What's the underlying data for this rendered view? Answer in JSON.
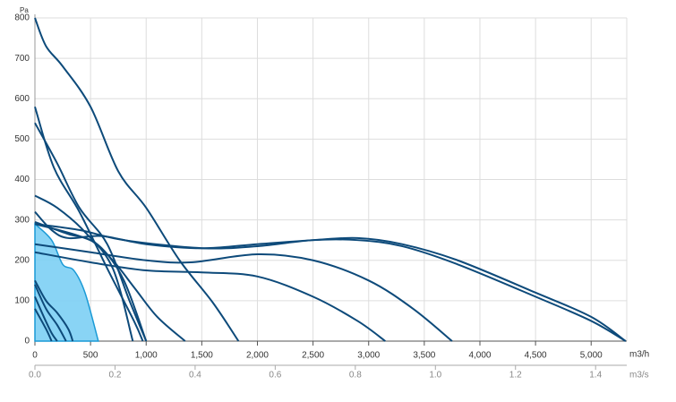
{
  "chart_data": {
    "type": "line",
    "ylabel": "Pa",
    "xlabel": "m3/h",
    "x2label": "m3/s",
    "xlim": [
      0,
      5320
    ],
    "ylim": [
      0,
      800
    ],
    "x2lim": [
      0,
      1.4778
    ],
    "xticks": [
      0,
      500,
      {
        "value": 1000,
        "label": "1,000"
      },
      {
        "value": 1500,
        "label": "1,500"
      },
      {
        "value": 2000,
        "label": "2,000"
      },
      {
        "value": 2500,
        "label": "2,500"
      },
      {
        "value": 3000,
        "label": "3,000"
      },
      {
        "value": 3500,
        "label": "3,500"
      },
      {
        "value": 4000,
        "label": "4,000"
      },
      {
        "value": 4500,
        "label": "4,500"
      },
      {
        "value": 5000,
        "label": "5,000"
      }
    ],
    "yticks": [
      0,
      100,
      200,
      300,
      400,
      500,
      600,
      700,
      800
    ],
    "x2ticks": [
      {
        "value": 0,
        "label": "0.0"
      },
      0.2,
      0.4,
      0.6,
      0.8,
      {
        "value": 1,
        "label": "1.0"
      },
      1.2,
      1.4
    ],
    "grid": true,
    "series": [
      {
        "color": "#1a9ad6",
        "fill": "#7ccff4",
        "x": [
          0,
          150,
          250,
          350,
          450,
          570
        ],
        "values": [
          290,
          250,
          190,
          175,
          120,
          0
        ]
      },
      {
        "color": "#0d4a7a",
        "x": [
          0,
          100,
          250,
          500,
          750,
          1000,
          1300,
          1600,
          1830
        ],
        "values": [
          800,
          730,
          680,
          580,
          420,
          330,
          200,
          95,
          0
        ]
      },
      {
        "color": "#0d4a7a",
        "x": [
          0,
          170,
          400,
          650,
          890,
          970
        ],
        "values": [
          580,
          430,
          320,
          180,
          50,
          0
        ]
      },
      {
        "color": "#0d4a7a",
        "x": [
          0,
          200,
          400,
          650,
          850,
          1000
        ],
        "values": [
          540,
          440,
          330,
          240,
          100,
          0
        ]
      },
      {
        "color": "#0d4a7a",
        "x": [
          0,
          200,
          450,
          700,
          880
        ],
        "values": [
          360,
          330,
          270,
          180,
          0
        ]
      },
      {
        "color": "#0d4a7a",
        "x": [
          0,
          150,
          300,
          600,
          1000,
          1500,
          2000,
          2500,
          2900,
          3300,
          3800,
          4500,
          5000,
          5310
        ],
        "values": [
          320,
          275,
          255,
          260,
          240,
          230,
          240,
          250,
          255,
          240,
          200,
          120,
          60,
          0
        ]
      },
      {
        "color": "#0d4a7a",
        "x": [
          0,
          400,
          800,
          1500,
          2000,
          2500,
          2900,
          3300,
          3800,
          4500,
          5000,
          5310
        ],
        "values": [
          290,
          275,
          250,
          230,
          235,
          250,
          250,
          235,
          190,
          110,
          50,
          0
        ]
      },
      {
        "color": "#0d4a7a",
        "x": [
          0,
          500,
          1000,
          1400,
          2000,
          2500,
          3000,
          3400,
          3750
        ],
        "values": [
          240,
          220,
          200,
          195,
          215,
          200,
          150,
          80,
          0
        ]
      },
      {
        "color": "#0d4a7a",
        "x": [
          0,
          500,
          1000,
          1500,
          2000,
          2500,
          2900,
          3150
        ],
        "values": [
          220,
          195,
          175,
          170,
          160,
          110,
          50,
          0
        ]
      },
      {
        "color": "#0d4a7a",
        "x": [
          0,
          300,
          500,
          700,
          900,
          1100,
          1350
        ],
        "values": [
          295,
          265,
          250,
          200,
          130,
          60,
          0
        ]
      },
      {
        "color": "#0d4a7a",
        "x": [
          0,
          400,
          600,
          800,
          1000
        ],
        "values": [
          290,
          260,
          230,
          150,
          0
        ]
      },
      {
        "color": "#0d4a7a",
        "x": [
          0,
          100,
          200,
          300,
          340
        ],
        "values": [
          150,
          100,
          70,
          30,
          0
        ]
      },
      {
        "color": "#0d4a7a",
        "x": [
          0,
          100,
          200,
          280
        ],
        "values": [
          140,
          80,
          40,
          0
        ]
      },
      {
        "color": "#0d4a7a",
        "x": [
          0,
          80,
          150,
          200
        ],
        "values": [
          110,
          60,
          20,
          0
        ]
      },
      {
        "color": "#0d4a7a",
        "x": [
          0,
          100,
          150
        ],
        "values": [
          80,
          30,
          0
        ]
      }
    ]
  }
}
